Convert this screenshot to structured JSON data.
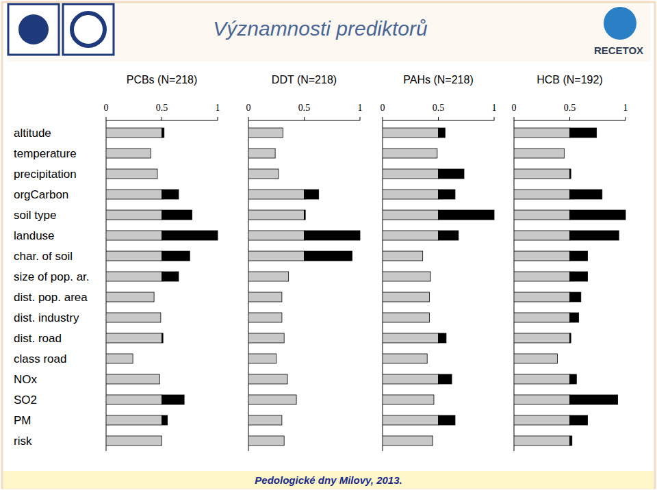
{
  "page": {
    "title": "Významnosti prediktorů",
    "footer": "Pedologické dny Milovy, 2013.",
    "logo_text": "RECETOX"
  },
  "chart_data": [
    {
      "type": "bar",
      "title": "PCBs (N=218)",
      "orientation": "horizontal",
      "stacked": true,
      "categories": [
        "altitude",
        "temperature",
        "precipitation",
        "orgCarbon",
        "soil type",
        "landuse",
        "char. of soil",
        "size of pop. ar.",
        "dist. pop. area",
        "dist. industry",
        "dist. road",
        "class road",
        "NOx",
        "SO2",
        "PM",
        "risk"
      ],
      "series": [
        {
          "color": "#c8c8c8",
          "values": [
            0.5,
            0.4,
            0.46,
            0.5,
            0.5,
            0.5,
            0.5,
            0.5,
            0.43,
            0.49,
            0.5,
            0.24,
            0.48,
            0.5,
            0.5,
            0.5
          ]
        },
        {
          "color": "#000000",
          "values": [
            0.02,
            0,
            0,
            0.15,
            0.27,
            0.5,
            0.25,
            0.15,
            0,
            0,
            0.01,
            0,
            0,
            0.2,
            0.05,
            0
          ]
        }
      ],
      "xlim": [
        0,
        1
      ],
      "xticks": [
        0,
        0.5,
        1
      ]
    },
    {
      "type": "bar",
      "title": "DDT (N=218)",
      "orientation": "horizontal",
      "stacked": true,
      "tick_labels": "x",
      "categories": [
        "altitude",
        "temperature",
        "precipitation",
        "orgCarbon",
        "soil type",
        "landuse",
        "char. of soil",
        "size of pop. ar.",
        "dist. pop. area",
        "dist. industry",
        "dist. road",
        "class road",
        "NOx",
        "SO2",
        "PM",
        "risk"
      ],
      "series": [
        {
          "color": "#c8c8c8",
          "values": [
            0.31,
            0.24,
            0.27,
            0.5,
            0.5,
            0.5,
            0.5,
            0.36,
            0.3,
            0.3,
            0.32,
            0.25,
            0.35,
            0.43,
            0.3,
            0.32
          ]
        },
        {
          "color": "#000000",
          "values": [
            0,
            0,
            0,
            0.13,
            0.01,
            0.5,
            0.43,
            0,
            0,
            0,
            0,
            0,
            0,
            0,
            0,
            0
          ]
        }
      ],
      "xlim": [
        0,
        1
      ],
      "xticks": [
        0,
        0.5,
        1
      ]
    },
    {
      "type": "bar",
      "title": "PAHs (N=218)",
      "orientation": "horizontal",
      "stacked": true,
      "tick_labels": "x",
      "categories": [
        "altitude",
        "temperature",
        "precipitation",
        "orgCarbon",
        "soil type",
        "landuse",
        "char. of soil",
        "size of pop. ar.",
        "dist. pop. area",
        "dist. industry",
        "dist. road",
        "class road",
        "NOx",
        "SO2",
        "PM",
        "risk"
      ],
      "series": [
        {
          "color": "#c8c8c8",
          "values": [
            0.5,
            0.49,
            0.5,
            0.5,
            0.5,
            0.5,
            0.36,
            0.43,
            0.42,
            0.42,
            0.5,
            0.4,
            0.5,
            0.46,
            0.5,
            0.45
          ]
        },
        {
          "color": "#000000",
          "values": [
            0.06,
            0,
            0.23,
            0.15,
            0.5,
            0.18,
            0,
            0,
            0,
            0,
            0.07,
            0,
            0.12,
            0,
            0.15,
            0
          ]
        }
      ],
      "xlim": [
        0,
        1
      ],
      "xticks": [
        0,
        0.5,
        1
      ]
    },
    {
      "type": "bar",
      "title": "HCB (N=192)",
      "orientation": "horizontal",
      "stacked": true,
      "tick_labels": "x",
      "categories": [
        "altitude",
        "temperature",
        "precipitation",
        "orgCarbon",
        "soil type",
        "landuse",
        "char. of soil",
        "size of pop. ar.",
        "dist. pop. area",
        "dist. industry",
        "dist. road",
        "class road",
        "NOx",
        "SO2",
        "PM",
        "risk"
      ],
      "series": [
        {
          "color": "#c8c8c8",
          "values": [
            0.5,
            0.45,
            0.5,
            0.5,
            0.5,
            0.5,
            0.5,
            0.5,
            0.5,
            0.5,
            0.5,
            0.39,
            0.5,
            0.5,
            0.5,
            0.5
          ]
        },
        {
          "color": "#000000",
          "values": [
            0.24,
            0,
            0.01,
            0.29,
            0.5,
            0.44,
            0.16,
            0.16,
            0.1,
            0.08,
            0.01,
            0,
            0.06,
            0.43,
            0.16,
            0.02
          ]
        }
      ],
      "xlim": [
        0,
        1
      ],
      "xticks": [
        0,
        0.5,
        1
      ]
    }
  ]
}
